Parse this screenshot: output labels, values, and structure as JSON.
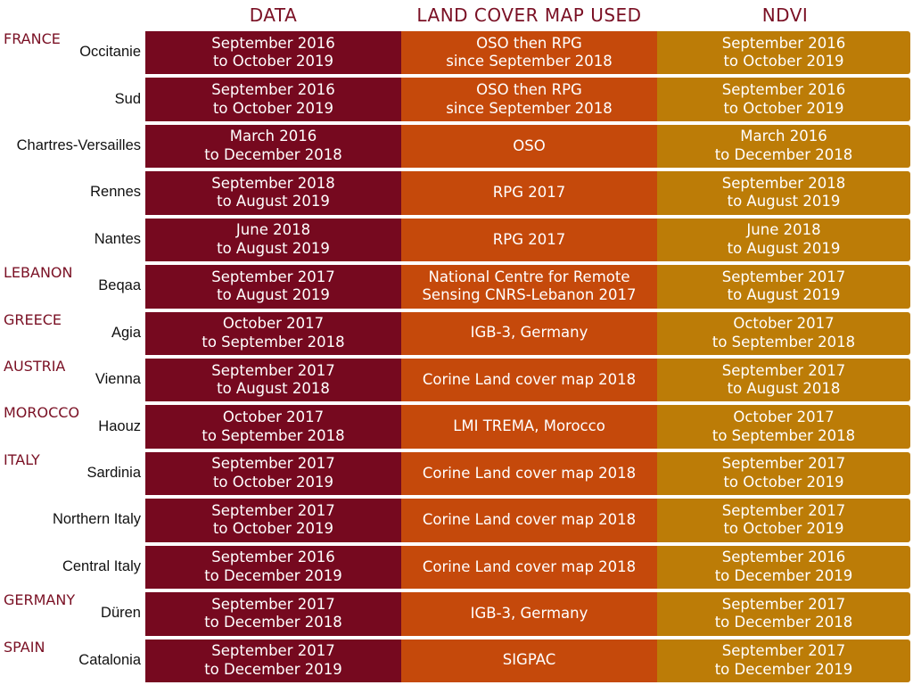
{
  "headers": {
    "data": "DATA",
    "land": "LAND COVER MAP USED",
    "ndvi": "NDVI"
  },
  "rows": [
    {
      "country": "FRANCE",
      "region": "Occitanie",
      "data": [
        "September 2016",
        "to October 2019"
      ],
      "land": [
        "OSO then RPG",
        "since September 2018"
      ],
      "ndvi": [
        "September 2016",
        "to October 2019"
      ]
    },
    {
      "country": "",
      "region": "Sud",
      "data": [
        "September 2016",
        "to October 2019"
      ],
      "land": [
        "OSO then RPG",
        "since September 2018"
      ],
      "ndvi": [
        "September 2016",
        "to October 2019"
      ]
    },
    {
      "country": "",
      "region": "Chartres-Versailles",
      "data": [
        "March 2016",
        "to December 2018"
      ],
      "land": [
        "OSO",
        ""
      ],
      "ndvi": [
        "March 2016",
        "to December 2018"
      ]
    },
    {
      "country": "",
      "region": "Rennes",
      "data": [
        "September 2018",
        "to August 2019"
      ],
      "land": [
        "RPG 2017",
        ""
      ],
      "ndvi": [
        "September 2018",
        "to August 2019"
      ]
    },
    {
      "country": "",
      "region": "Nantes",
      "data": [
        "June 2018",
        "to August 2019"
      ],
      "land": [
        "RPG 2017",
        ""
      ],
      "ndvi": [
        "June 2018",
        "to August 2019"
      ]
    },
    {
      "country": "LEBANON",
      "region": "Beqaa",
      "data": [
        "September 2017",
        "to August 2019"
      ],
      "land": [
        "National Centre for Remote",
        "Sensing CNRS-Lebanon 2017"
      ],
      "ndvi": [
        "September 2017",
        "to August 2019"
      ]
    },
    {
      "country": "GREECE",
      "region": "Agia",
      "data": [
        "October 2017",
        "to September 2018"
      ],
      "land": [
        "IGB-3, Germany",
        ""
      ],
      "ndvi": [
        "October 2017",
        "to September 2018"
      ]
    },
    {
      "country": "AUSTRIA",
      "region": "Vienna",
      "data": [
        "September 2017",
        "to August 2018"
      ],
      "land": [
        "Corine Land cover map 2018",
        ""
      ],
      "ndvi": [
        "September 2017",
        "to August 2018"
      ]
    },
    {
      "country": "MOROCCO",
      "region": "Haouz",
      "data": [
        "October 2017",
        "to September 2018"
      ],
      "land": [
        "LMI TREMA, Morocco",
        ""
      ],
      "ndvi": [
        "October 2017",
        "to September 2018"
      ]
    },
    {
      "country": "ITALY",
      "region": "Sardinia",
      "data": [
        "September 2017",
        "to October 2019"
      ],
      "land": [
        "Corine Land cover map 2018",
        ""
      ],
      "ndvi": [
        "September 2017",
        "to October 2019"
      ]
    },
    {
      "country": "",
      "region": "Northern Italy",
      "data": [
        "September 2017",
        "to October 2019"
      ],
      "land": [
        "Corine Land cover map 2018",
        ""
      ],
      "ndvi": [
        "September 2017",
        "to October 2019"
      ]
    },
    {
      "country": "",
      "region": "Central Italy",
      "data": [
        "September 2016",
        "to December 2019"
      ],
      "land": [
        "Corine Land cover map 2018",
        ""
      ],
      "ndvi": [
        "September 2016",
        "to December 2019"
      ]
    },
    {
      "country": "GERMANY",
      "region": "Düren",
      "data": [
        "September 2017",
        "to December 2018"
      ],
      "land": [
        "IGB-3, Germany",
        ""
      ],
      "ndvi": [
        "September 2017",
        "to December 2018"
      ]
    },
    {
      "country": "SPAIN",
      "region": "Catalonia",
      "data": [
        "September 2017",
        "to December 2019"
      ],
      "land": [
        "SIGPAC",
        ""
      ],
      "ndvi": [
        "September 2017",
        "to December 2019"
      ]
    }
  ]
}
